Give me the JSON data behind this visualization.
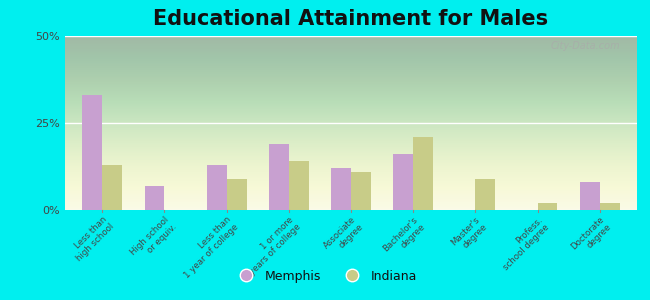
{
  "title": "Educational Attainment for Males",
  "categories": [
    "Less than\nhigh school",
    "High school\nor equiv.",
    "Less than\n1 year of college",
    "1 or more\nyears of college",
    "Associate\ndegree",
    "Bachelor's\ndegree",
    "Master's\ndegree",
    "Profess.\nschool degree",
    "Doctorate\ndegree"
  ],
  "memphis_values": [
    33,
    7,
    13,
    19,
    12,
    16,
    0,
    0,
    8
  ],
  "indiana_values": [
    13,
    0,
    9,
    14,
    11,
    21,
    9,
    2,
    2
  ],
  "memphis_color": "#c8a0d0",
  "indiana_color": "#c8cc88",
  "background_plot_top": "#e8f0d8",
  "background_plot_bottom": "#f8f8e8",
  "background_outer": "#00efef",
  "ylim": [
    0,
    50
  ],
  "yticks": [
    0,
    25,
    50
  ],
  "ytick_labels": [
    "0%",
    "25%",
    "50%"
  ],
  "title_fontsize": 15,
  "legend_labels": [
    "Memphis",
    "Indiana"
  ],
  "watermark": "City-Data.com"
}
